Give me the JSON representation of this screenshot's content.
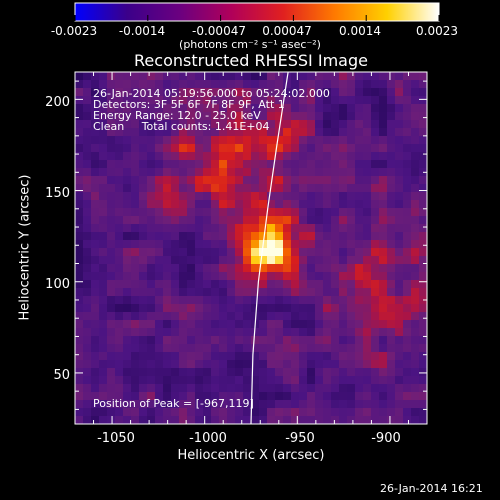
{
  "colorbar": {
    "ticks": [
      "-0.0023",
      "-0.0014",
      "-0.00047",
      "0.00047",
      "0.0014",
      "0.0023"
    ],
    "units_label": "(photons cm⁻² s⁻¹ asec⁻²)",
    "colors": [
      "#0000ff",
      "#3b008a",
      "#6a0080",
      "#b0005a",
      "#e02020",
      "#ff7a00",
      "#ffd000",
      "#ffffff"
    ]
  },
  "chart_data": {
    "type": "heatmap",
    "title": "Reconstructed RHESSI Image",
    "xlabel": "Heliocentric X (arcsec)",
    "ylabel": "Heliocentric Y (arcsec)",
    "xlim": [
      -1070,
      -880
    ],
    "ylim": [
      22,
      215
    ],
    "xticks": [
      -1050,
      -1000,
      -950,
      -900
    ],
    "yticks": [
      50,
      100,
      150,
      200
    ],
    "value_range": [
      -0.0023,
      0.0023
    ],
    "peak": {
      "x": -967,
      "y": 119
    },
    "annotations": {
      "time_range": "26-Jan-2014 05:19:56.000 to 05:24:02.000",
      "detectors": "Detectors: 3F 5F 6F 7F 8F 9F, Att 1",
      "energy": "Energy Range: 12.0 - 25.0 keV",
      "clean": "Clean     Total counts: 1.41E+04",
      "peak_position": "Position of Peak = [-967,119]"
    },
    "limb_curve": [
      [
        -975,
        22
      ],
      [
        -974,
        60
      ],
      [
        -971,
        100
      ],
      [
        -966,
        140
      ],
      [
        -961,
        175
      ],
      [
        -955,
        215
      ]
    ]
  },
  "footer": {
    "timestamp": "26-Jan-2014 16:21"
  }
}
